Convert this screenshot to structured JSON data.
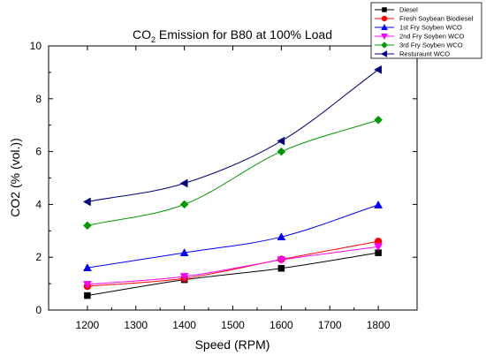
{
  "chart_data": {
    "type": "line",
    "title_main": "CO",
    "title_sub": "2",
    "title_rest": " Emission for B80 at 100% Load",
    "xlabel": "Speed (RPM)",
    "ylabel": "CO2 (% (vol.))",
    "xlim": [
      1120,
      1880
    ],
    "ylim": [
      0,
      10
    ],
    "xticks": [
      1200,
      1300,
      1400,
      1500,
      1600,
      1700,
      1800
    ],
    "yticks": [
      0,
      2,
      4,
      6,
      8,
      10
    ],
    "x": [
      1200,
      1400,
      1600,
      1800
    ],
    "legend_position": "top-right",
    "series": [
      {
        "name": "Diesel",
        "values": [
          0.55,
          1.15,
          1.58,
          2.17
        ],
        "color": "#000000",
        "marker": "square"
      },
      {
        "name": "Fresh Soybean Biodiesel",
        "values": [
          0.9,
          1.2,
          1.92,
          2.6
        ],
        "color": "#ff0000",
        "marker": "circle"
      },
      {
        "name": "1st Fry Soyben WCO",
        "values": [
          1.6,
          2.17,
          2.77,
          3.98
        ],
        "color": "#0000ff",
        "marker": "triangle-up"
      },
      {
        "name": "2nd Fry Soyben WCO",
        "values": [
          0.97,
          1.27,
          1.9,
          2.4
        ],
        "color": "#ff00ff",
        "marker": "triangle-down"
      },
      {
        "name": "3rd Fry Soyben WCO",
        "values": [
          3.2,
          4.0,
          6.0,
          7.2
        ],
        "color": "#009900",
        "marker": "diamond"
      },
      {
        "name": "Resturaunt WCO",
        "values": [
          4.1,
          4.8,
          6.4,
          9.1
        ],
        "color": "#000080",
        "marker": "triangle-left"
      }
    ]
  }
}
